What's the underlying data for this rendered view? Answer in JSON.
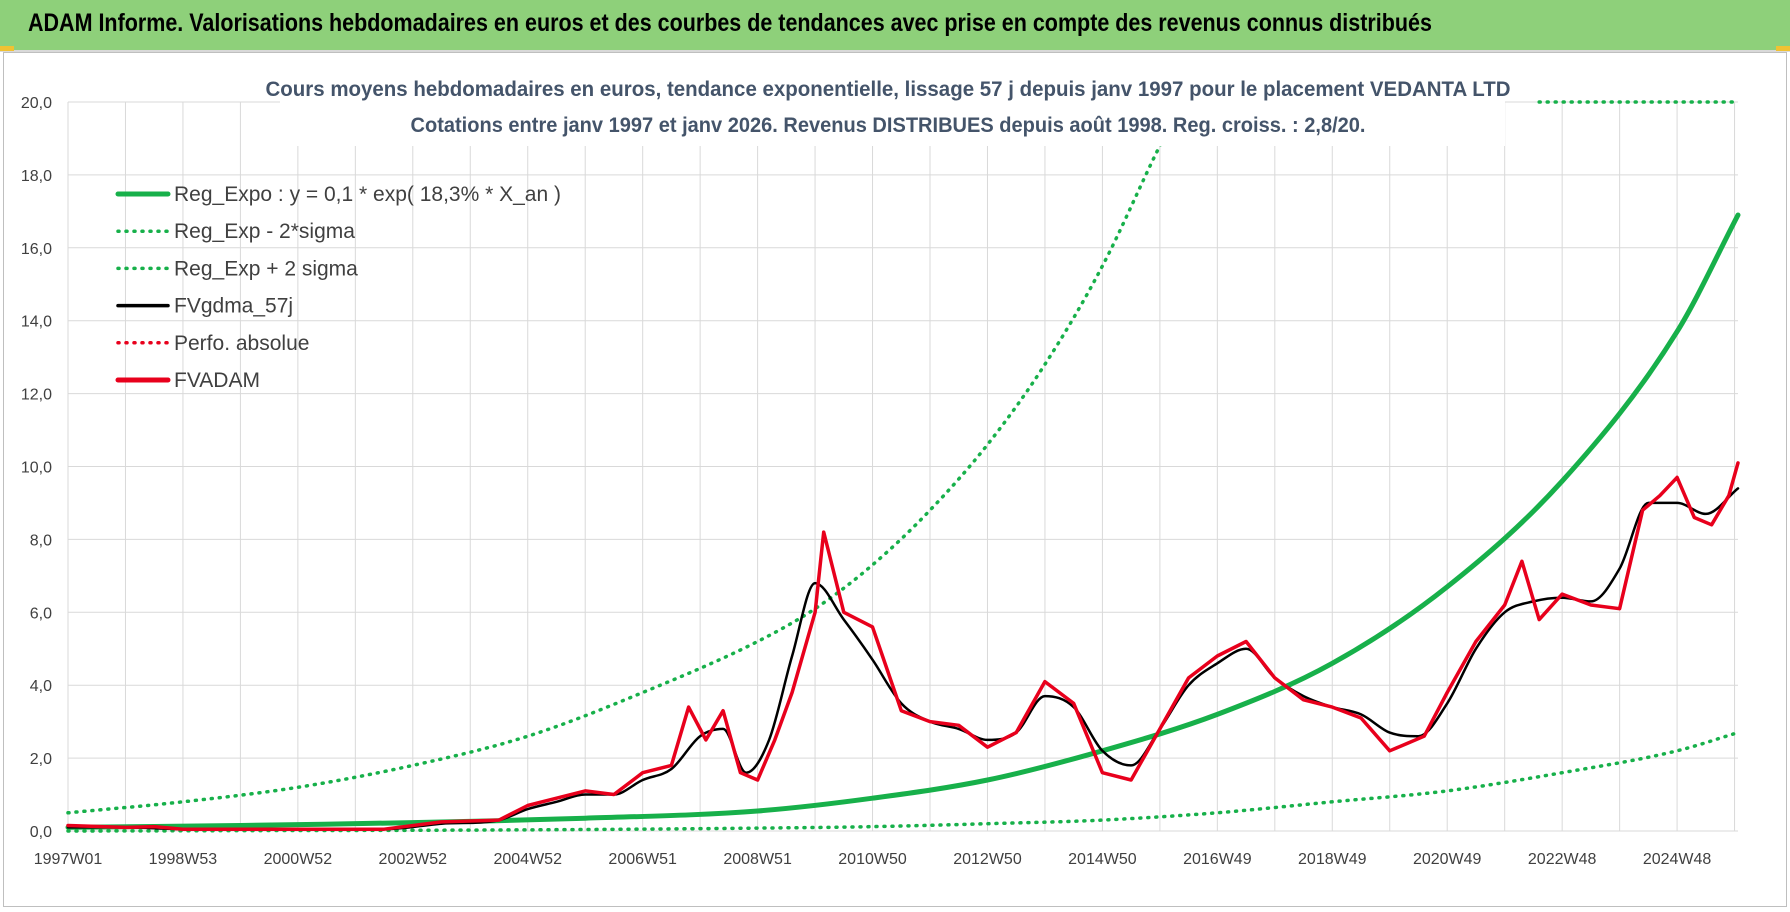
{
  "header": {
    "title": "ADAM Informe. Valorisations hebdomadaires en euros et des courbes de tendances avec prise en compte des revenus connus distribués"
  },
  "colors": {
    "green": "#17b04a",
    "black": "#000000",
    "red": "#e8001c",
    "grid": "#d9d9d9",
    "banner": "#8ed07a",
    "title": "#44546a"
  },
  "chart_data": {
    "type": "line",
    "title_line1": "Cours moyens hebdomadaires en euros, tendance exponentielle, lissage 57 j depuis janv 1997  pour le  placement VEDANTA LTD",
    "title_line2": "Cotations entre janv 1997 et janv 2026. Revenus DISTRIBUES depuis août 1998. Reg. croiss. : 2,8/20.",
    "x_range": [
      1997.0,
      2026.06
    ],
    "ylim": [
      0,
      20
    ],
    "y_ticks": [
      "0,0",
      "2,0",
      "4,0",
      "6,0",
      "8,0",
      "10,0",
      "12,0",
      "14,0",
      "16,0",
      "18,0",
      "20,0"
    ],
    "x_ticks": [
      {
        "label": "1997W01",
        "t": 1997.0
      },
      {
        "label": "1998W53",
        "t": 1999.0
      },
      {
        "label": "2000W52",
        "t": 2001.0
      },
      {
        "label": "2002W52",
        "t": 2003.0
      },
      {
        "label": "2004W52",
        "t": 2005.0
      },
      {
        "label": "2006W51",
        "t": 2007.0
      },
      {
        "label": "2008W51",
        "t": 2009.0
      },
      {
        "label": "2010W50",
        "t": 2011.0
      },
      {
        "label": "2012W50",
        "t": 2013.0
      },
      {
        "label": "2014W50",
        "t": 2015.0
      },
      {
        "label": "2016W49",
        "t": 2017.0
      },
      {
        "label": "2018W49",
        "t": 2019.0
      },
      {
        "label": "2020W49",
        "t": 2021.0
      },
      {
        "label": "2022W48",
        "t": 2023.0
      },
      {
        "label": "2024W48",
        "t": 2025.0
      }
    ],
    "legend": [
      {
        "label": "Reg_Expo : y = 0,1 * exp( 18,3% *  X_an )",
        "color": "#17b04a",
        "style": "solid-thick"
      },
      {
        "label": "Reg_Exp - 2*sigma",
        "color": "#17b04a",
        "style": "dotted"
      },
      {
        "label": "Reg_Exp + 2 sigma",
        "color": "#17b04a",
        "style": "dotted"
      },
      {
        "label": "FVgdma_57j",
        "color": "#000000",
        "style": "solid"
      },
      {
        "label": "Perfo. absolue",
        "color": "#e8001c",
        "style": "dotted"
      },
      {
        "label": "FVADAM",
        "color": "#e8001c",
        "style": "solid-thick"
      }
    ],
    "series": [
      {
        "name": "Reg_Expo",
        "x": [
          1997.0,
          2000.0,
          2003.0,
          2006.0,
          2009.0,
          2011.0,
          2013.0,
          2015.0,
          2017.0,
          2019.0,
          2021.0,
          2023.0,
          2025.0,
          2026.06
        ],
        "values": [
          0.1,
          0.15,
          0.23,
          0.35,
          0.55,
          0.9,
          1.4,
          2.2,
          3.2,
          4.6,
          6.7,
          9.6,
          13.7,
          16.9
        ]
      },
      {
        "name": "Reg_Exp - 2*sigma",
        "x": [
          1997.0,
          2000.0,
          2003.0,
          2006.0,
          2009.0,
          2011.0,
          2013.0,
          2015.0,
          2017.0,
          2019.0,
          2021.0,
          2023.0,
          2025.0,
          2026.06
        ],
        "values": [
          0.0,
          0.01,
          0.02,
          0.04,
          0.08,
          0.12,
          0.2,
          0.3,
          0.5,
          0.8,
          1.1,
          1.6,
          2.2,
          2.7
        ]
      },
      {
        "name": "Reg_Exp + 2 sigma",
        "x": [
          1997.0,
          1999.0,
          2001.0,
          2003.0,
          2005.0,
          2007.0,
          2009.0,
          2010.0,
          2011.0,
          2012.0,
          2013.0,
          2014.0,
          2015.0,
          2016.0,
          2016.4
        ],
        "values": [
          0.5,
          0.8,
          1.2,
          1.8,
          2.6,
          3.8,
          5.2,
          6.1,
          7.3,
          8.8,
          10.6,
          12.8,
          15.5,
          18.8,
          20.0
        ]
      },
      {
        "name": "Reg_Exp + 2 sigma (cap)",
        "x": [
          2022.6,
          2026.06
        ],
        "values": [
          20.0,
          20.0
        ]
      },
      {
        "name": "FVgdma_57j",
        "x": [
          1997.0,
          1998.0,
          1999.0,
          2001.0,
          2002.5,
          2003.5,
          2004.5,
          2005.0,
          2005.5,
          2006.0,
          2006.5,
          2007.0,
          2007.5,
          2008.0,
          2008.4,
          2008.8,
          2009.2,
          2009.6,
          2010.0,
          2010.5,
          2011.0,
          2011.5,
          2012.0,
          2012.5,
          2013.0,
          2013.5,
          2014.0,
          2014.5,
          2015.0,
          2015.5,
          2016.0,
          2016.5,
          2017.0,
          2017.5,
          2018.0,
          2018.5,
          2019.0,
          2019.5,
          2020.0,
          2020.5,
          2021.0,
          2021.5,
          2022.0,
          2022.5,
          2023.0,
          2023.5,
          2024.0,
          2024.5,
          2025.0,
          2025.5,
          2026.06
        ],
        "values": [
          0.1,
          0.1,
          0.05,
          0.05,
          0.05,
          0.2,
          0.3,
          0.6,
          0.8,
          1.0,
          1.0,
          1.4,
          1.7,
          2.6,
          2.8,
          1.6,
          2.5,
          4.8,
          6.8,
          5.8,
          4.7,
          3.5,
          3.0,
          2.8,
          2.5,
          2.7,
          3.7,
          3.4,
          2.2,
          1.8,
          2.8,
          4.0,
          4.6,
          5.0,
          4.2,
          3.7,
          3.4,
          3.2,
          2.7,
          2.6,
          3.5,
          5.0,
          6.0,
          6.3,
          6.4,
          6.3,
          7.2,
          9.0,
          9.0,
          8.7,
          9.4
        ]
      },
      {
        "name": "FVADAM",
        "x": [
          1997.0,
          1998.0,
          1998.5,
          1999.0,
          2001.0,
          2002.5,
          2003.5,
          2004.5,
          2005.0,
          2005.5,
          2006.0,
          2006.5,
          2007.0,
          2007.5,
          2007.8,
          2008.1,
          2008.4,
          2008.7,
          2009.0,
          2009.3,
          2009.6,
          2010.0,
          2010.15,
          2010.5,
          2011.0,
          2011.5,
          2012.0,
          2012.5,
          2013.0,
          2013.5,
          2014.0,
          2014.5,
          2015.0,
          2015.5,
          2016.0,
          2016.5,
          2017.0,
          2017.5,
          2018.0,
          2018.5,
          2019.0,
          2019.5,
          2020.0,
          2020.3,
          2020.6,
          2021.0,
          2021.5,
          2022.0,
          2022.3,
          2022.6,
          2023.0,
          2023.5,
          2024.0,
          2024.4,
          2024.7,
          2025.0,
          2025.3,
          2025.6,
          2025.9,
          2026.06
        ],
        "values": [
          0.15,
          0.1,
          0.12,
          0.05,
          0.05,
          0.05,
          0.25,
          0.3,
          0.7,
          0.9,
          1.1,
          1.0,
          1.6,
          1.8,
          3.4,
          2.5,
          3.3,
          1.6,
          1.4,
          2.5,
          3.8,
          6.0,
          8.2,
          6.0,
          5.6,
          3.3,
          3.0,
          2.9,
          2.3,
          2.7,
          4.1,
          3.5,
          1.6,
          1.4,
          2.8,
          4.2,
          4.8,
          5.2,
          4.2,
          3.6,
          3.4,
          3.1,
          2.2,
          2.4,
          2.6,
          3.8,
          5.2,
          6.2,
          7.4,
          5.8,
          6.5,
          6.2,
          6.1,
          8.8,
          9.2,
          9.7,
          8.6,
          8.4,
          9.2,
          10.1
        ]
      }
    ]
  }
}
